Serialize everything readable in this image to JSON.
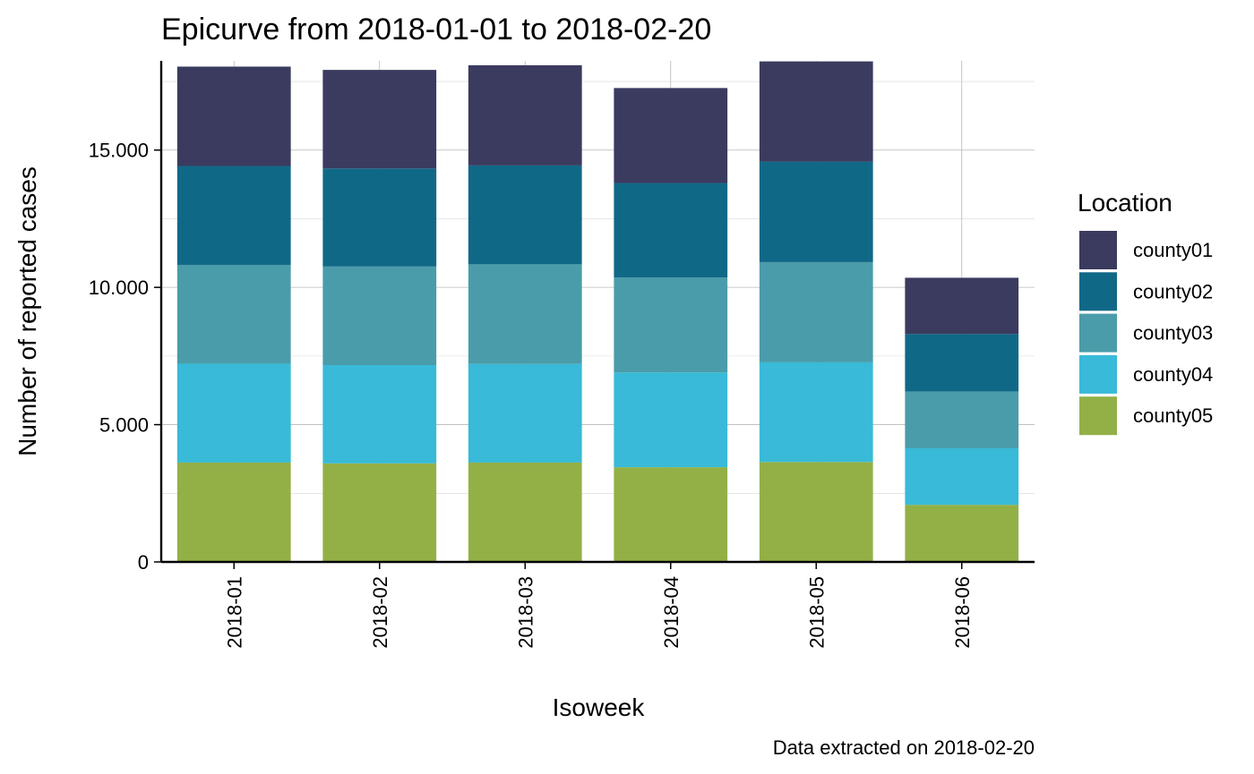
{
  "chart_data": {
    "type": "bar",
    "stacked": true,
    "title": "Epicurve from 2018-01-01 to 2018-02-20",
    "xlabel": "Isoweek",
    "ylabel": "Number of reported cases",
    "caption": "Data extracted on 2018-02-20",
    "categories": [
      "2018-01",
      "2018-02",
      "2018-03",
      "2018-04",
      "2018-05",
      "2018-06"
    ],
    "y_ticks": [
      0,
      5000,
      10000,
      15000
    ],
    "y_tick_labels": [
      "0",
      "5.000",
      "10.000",
      "15.000"
    ],
    "ylim": [
      0,
      18250
    ],
    "grid": true,
    "legend": {
      "title": "Location",
      "position": "right"
    },
    "series": [
      {
        "name": "county05",
        "color": "#93B046",
        "values": [
          3620,
          3590,
          3620,
          3450,
          3640,
          2080
        ]
      },
      {
        "name": "county04",
        "color": "#38BAD8",
        "values": [
          3600,
          3580,
          3590,
          3450,
          3630,
          2060
        ]
      },
      {
        "name": "county03",
        "color": "#4A9CAA",
        "values": [
          3600,
          3590,
          3630,
          3460,
          3650,
          2070
        ]
      },
      {
        "name": "county02",
        "color": "#106887",
        "values": [
          3600,
          3570,
          3600,
          3440,
          3660,
          2090
        ]
      },
      {
        "name": "county01",
        "color": "#3A3B5F",
        "values": [
          3620,
          3590,
          3650,
          3460,
          3650,
          2050
        ]
      }
    ]
  }
}
